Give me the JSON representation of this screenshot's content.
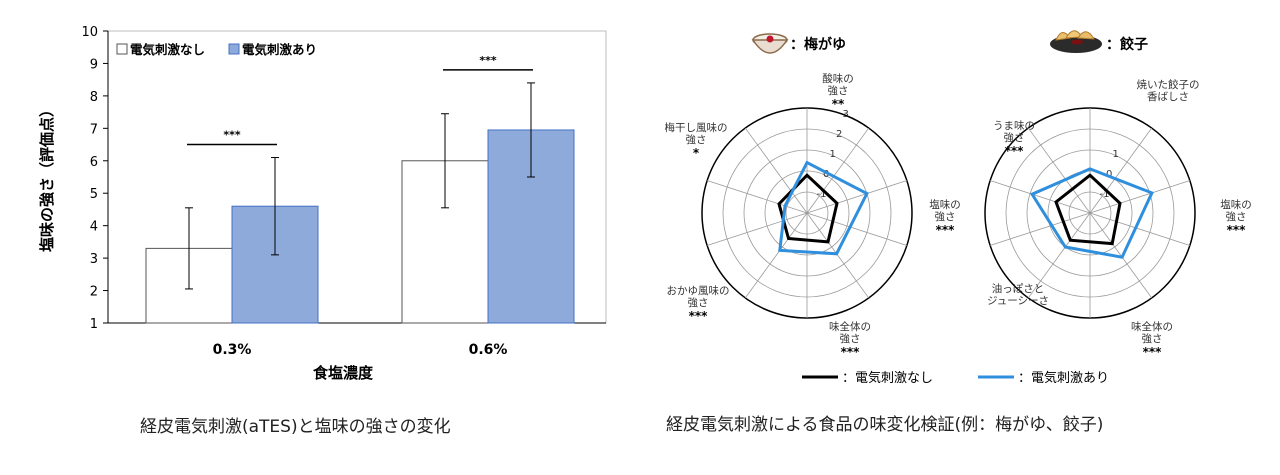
{
  "captions": {
    "left": "経皮電気刺激(aTES)と塩味の強さの変化",
    "right": "経皮電気刺激による食品の味変化検証(例：梅がゆ、餃子)"
  },
  "colors": {
    "blue_bar": "#8eaadb",
    "blue_line": "#2f8fdd",
    "black": "#000000"
  },
  "chart_data": [
    {
      "type": "bar",
      "ylabel": "塩味の強さ（評価点）",
      "xlabel": "食塩濃度",
      "categories": [
        "0.3%",
        "0.6%"
      ],
      "ylim": [
        1,
        10
      ],
      "yticks": [
        "1",
        "2",
        "3",
        "4",
        "5",
        "6",
        "7",
        "8",
        "9",
        "10"
      ],
      "legend_position": "top-left",
      "series": [
        {
          "name": "電気刺激なし",
          "values": [
            3.3,
            6.0
          ],
          "error": [
            1.25,
            1.45
          ],
          "color": "#ffffff"
        },
        {
          "name": "電気刺激あり",
          "values": [
            4.6,
            6.95
          ],
          "error": [
            1.5,
            1.45
          ],
          "color": "#8eaadb"
        }
      ],
      "significance": [
        "***",
        "***"
      ]
    },
    {
      "type": "radar",
      "food": "梅がゆ",
      "food_label": "：梅がゆ",
      "axis_labels": [
        {
          "text": [
            "酸味の",
            "強さ"
          ],
          "sig": "**"
        },
        {
          "text": [
            "塩味の",
            "強さ"
          ],
          "sig": "***"
        },
        {
          "text": [
            "味全体の",
            "強さ"
          ],
          "sig": "***"
        },
        {
          "text": [
            "おかゆ風味の",
            "強さ"
          ],
          "sig": "***"
        },
        {
          "text": [
            "梅干し風味の",
            "強さ"
          ],
          "sig": "*"
        }
      ],
      "rlim": [
        -2,
        3
      ],
      "rticks": [
        "-1",
        "0",
        "1",
        "2",
        "3"
      ],
      "series": [
        {
          "name": "電気刺激なし",
          "values": [
            -0.2,
            -0.5,
            -0.3,
            -0.5,
            -0.6
          ],
          "color": "#000000"
        },
        {
          "name": "電気刺激あり",
          "values": [
            0.4,
            1.0,
            0.4,
            0.2,
            -0.9
          ],
          "color": "#2f8fdd"
        }
      ]
    },
    {
      "type": "radar",
      "food": "餃子",
      "food_label": "：餃子",
      "axis_labels": [
        {
          "text": [
            "焼いた餃子の",
            "香ばしさ"
          ],
          "sig": ""
        },
        {
          "text": [
            "塩味の",
            "強さ"
          ],
          "sig": "***"
        },
        {
          "text": [
            "味全体の",
            "強さ"
          ],
          "sig": "***"
        },
        {
          "text": [
            "油っぽさと",
            "ジューシーさ"
          ],
          "sig": ""
        },
        {
          "text": [
            "うま味の",
            "強さ"
          ],
          "sig": "***"
        }
      ],
      "rlim": [
        -2,
        3
      ],
      "rticks": [
        "-1",
        "0",
        "1"
      ],
      "series": [
        {
          "name": "電気刺激なし",
          "values": [
            -0.2,
            -0.5,
            -0.2,
            -0.4,
            -0.3
          ],
          "color": "#000000"
        },
        {
          "name": "電気刺激あり",
          "values": [
            0.1,
            1.1,
            0.6,
            0.0,
            0.9
          ],
          "color": "#2f8fdd"
        }
      ]
    }
  ],
  "radar_legend": [
    {
      "label": "：電気刺激なし",
      "color": "#000000"
    },
    {
      "label": "：電気刺激あり",
      "color": "#2f8fdd"
    }
  ]
}
